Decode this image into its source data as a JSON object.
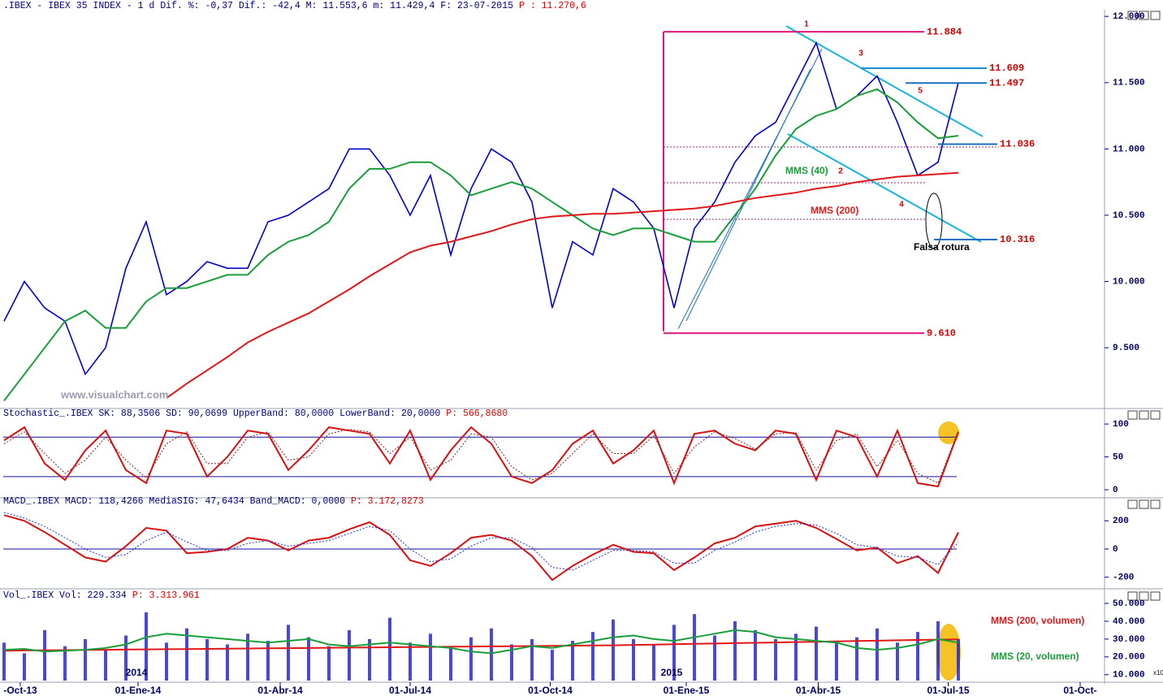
{
  "chart_data": [
    {
      "type": "line",
      "title": ".IBEX - IBEX 35 INDEX -  1 d Dif. %: -0,37 Dif.: -42,4 M: 11.553,6 m: 11.429,4 F: 23-07-2015",
      "title_p": "P : 11.270,6",
      "categories": [
        null,
        null,
        null,
        null,
        null,
        null,
        null,
        null,
        null,
        null,
        null,
        null,
        null,
        null,
        null,
        null,
        null,
        null,
        null,
        null,
        null,
        null,
        null,
        null,
        null,
        null,
        null,
        null,
        null,
        null,
        null,
        null,
        null,
        null,
        null,
        null,
        null,
        null,
        null,
        null,
        null,
        null,
        null,
        null,
        null,
        null,
        null,
        null
      ],
      "xlim": [
        -0.2,
        54.2
      ],
      "xticks": [
        {
          "value": 0.8,
          "label": "-Oct-13"
        },
        {
          "value": 6.6,
          "label": "01-Ene-14"
        },
        {
          "value": 13.6,
          "label": "01-Abr-14"
        },
        {
          "value": 20,
          "label": "01-Jul-14"
        },
        {
          "value": 26.9,
          "label": "01-Oct-14"
        },
        {
          "value": 33.6,
          "label": "01-Ene-15"
        },
        {
          "value": 40.1,
          "label": "01-Abr-15"
        },
        {
          "value": 46.5,
          "label": "01-Jul-15"
        },
        {
          "value": 53,
          "label": "01-Oct-"
        }
      ],
      "ylim": [
        9060,
        12050
      ],
      "yticks": [
        {
          "value": 12000,
          "label": "12.000"
        },
        {
          "value": 11500,
          "label": "11.500"
        },
        {
          "value": 11000,
          "label": "11.000"
        },
        {
          "value": 10500,
          "label": "10.500"
        },
        {
          "value": 10000,
          "label": "10.000"
        },
        {
          "value": 9500,
          "label": "9.500"
        }
      ],
      "series": [
        {
          "color": "#0000d0",
          "values": [
            9700,
            10000,
            9800,
            9700,
            9300,
            9500,
            10100,
            10450,
            9900,
            10000,
            10150,
            10100,
            10100,
            10450,
            10500,
            10600,
            10700,
            11000,
            11000,
            10800,
            10500,
            10800,
            10200,
            10700,
            11000,
            10900,
            10600,
            9800,
            10300,
            10200,
            10700,
            10600,
            10400,
            9800,
            10400,
            10600,
            10900,
            11100,
            11200,
            11500,
            11800,
            11300,
            11400,
            11550,
            11200,
            10800,
            10900,
            11500
          ]
        },
        {
          "name": "MMS (40)",
          "color": "#1a9e3a",
          "values": [
            9100,
            9300,
            9500,
            9700,
            9780,
            9650,
            9650,
            9850,
            9950,
            9950,
            10000,
            10050,
            10050,
            10200,
            10300,
            10350,
            10450,
            10700,
            10850,
            10850,
            10900,
            10900,
            10800,
            10650,
            10700,
            10750,
            10700,
            10600,
            10500,
            10400,
            10350,
            10400,
            10400,
            10350,
            10300,
            10300,
            10500,
            10700,
            10950,
            11150,
            11250,
            11300,
            11400,
            11450,
            11350,
            11200,
            11080,
            11100
          ]
        },
        {
          "name": "MMS (200)",
          "color": "#e01818",
          "values": [
            null,
            null,
            null,
            null,
            null,
            null,
            null,
            null,
            9120,
            9230,
            9330,
            9430,
            9540,
            9620,
            9690,
            9760,
            9850,
            9940,
            10040,
            10130,
            10220,
            10270,
            10300,
            10340,
            10380,
            10430,
            10470,
            10490,
            10500,
            10510,
            10510,
            10520,
            10530,
            10540,
            10550,
            10570,
            10600,
            10630,
            10650,
            10670,
            10700,
            10720,
            10750,
            10770,
            10790,
            10800,
            10810,
            10820
          ]
        }
      ],
      "levels": [
        {
          "value": 11884,
          "label": "11.884",
          "color": "#e0147a"
        },
        {
          "value": 11609,
          "label": "11.609",
          "color": "#1a8ed0"
        },
        {
          "value": 11497,
          "label": "11.497",
          "color": "#1a6fc0"
        },
        {
          "value": 11036,
          "label": "11.036",
          "color": "#1a6fc0"
        },
        {
          "value": 10316,
          "label": "10.316",
          "color": "#1a6fc0"
        },
        {
          "value": 9610,
          "label": "9.610",
          "color": "#e0147a"
        }
      ],
      "wave_labels": [
        "1",
        "2",
        "3",
        "4",
        "5"
      ],
      "annotations": [
        "Falsa rotura",
        "www.visualchart.com"
      ]
    },
    {
      "type": "line",
      "title": "Stochastic_.IBEX SK: 88,3506 SD: 90,0699 UpperBand: 80,0000 LowerBand: 20,0000",
      "title_p": "P: 566,8680",
      "ylim": [
        -8.6,
        110
      ],
      "yticks": [
        100,
        50,
        0
      ],
      "bands": [
        80,
        20
      ],
      "series": [
        {
          "color": "#d81010",
          "values": [
            75,
            95,
            40,
            15,
            60,
            90,
            30,
            10,
            90,
            85,
            20,
            50,
            90,
            85,
            30,
            60,
            95,
            90,
            85,
            40,
            90,
            15,
            60,
            95,
            70,
            20,
            10,
            30,
            70,
            90,
            40,
            60,
            90,
            10,
            85,
            90,
            70,
            60,
            90,
            85,
            15,
            90,
            80,
            20,
            90,
            10,
            5,
            88
          ]
        },
        {
          "color": "#802020",
          "values": [
            70,
            88,
            55,
            25,
            45,
            80,
            45,
            18,
            70,
            88,
            40,
            40,
            80,
            88,
            45,
            50,
            85,
            92,
            88,
            55,
            80,
            30,
            45,
            85,
            80,
            35,
            15,
            25,
            55,
            85,
            55,
            55,
            82,
            25,
            65,
            88,
            78,
            62,
            85,
            87,
            30,
            75,
            85,
            35,
            75,
            25,
            10,
            90
          ]
        }
      ]
    },
    {
      "type": "line",
      "title": "MACD_.IBEX MACD: 118,4266 MediaSIG: 47,6434 Band_MACD: 0,0000",
      "title_p": "P: 3.172,8273",
      "ylim": [
        -265,
        288
      ],
      "yticks": [
        200,
        0,
        -200
      ],
      "bands": [
        0
      ],
      "series": [
        {
          "color": "#d81010",
          "values": [
            240,
            200,
            120,
            30,
            -60,
            -90,
            20,
            150,
            130,
            -30,
            -20,
            0,
            80,
            60,
            -10,
            60,
            80,
            140,
            190,
            100,
            -80,
            -120,
            -30,
            80,
            100,
            60,
            -50,
            -220,
            -120,
            -40,
            30,
            -20,
            -30,
            -150,
            -60,
            40,
            80,
            160,
            180,
            200,
            150,
            70,
            -10,
            10,
            -100,
            -50,
            -170,
            118
          ]
        },
        {
          "color": "#2030d0",
          "values": [
            260,
            220,
            160,
            80,
            0,
            -60,
            -40,
            60,
            120,
            50,
            -10,
            -10,
            40,
            60,
            20,
            40,
            60,
            110,
            160,
            130,
            0,
            -90,
            -70,
            20,
            80,
            80,
            10,
            -130,
            -150,
            -80,
            -10,
            -10,
            -20,
            -100,
            -100,
            -10,
            50,
            120,
            160,
            180,
            170,
            110,
            30,
            10,
            -50,
            -60,
            -110,
            48
          ]
        }
      ]
    },
    {
      "type": "bar",
      "title": "Vol_.IBEX Vol: 229.334",
      "title_p": "P: 3.313.961",
      "unit_note": "x10",
      "ylim": [
        6700,
        52300
      ],
      "yticks": [
        {
          "value": 50000,
          "label": "50.000"
        },
        {
          "value": 40000,
          "label": "40.000"
        },
        {
          "value": 30000,
          "label": "30.000"
        },
        {
          "value": 20000,
          "label": "20.000"
        },
        {
          "value": 10000,
          "label": "10.000"
        }
      ],
      "color": "#1c1cc8",
      "values": [
        28000,
        22000,
        35000,
        26000,
        30000,
        24000,
        32000,
        45000,
        28000,
        36000,
        30000,
        27000,
        33000,
        29000,
        38000,
        31000,
        26000,
        35000,
        30000,
        42000,
        28000,
        33000,
        25000,
        31000,
        36000,
        27000,
        30000,
        24000,
        29000,
        34000,
        41000,
        30000,
        27000,
        38000,
        44000,
        32000,
        40000,
        35000,
        30000,
        33000,
        37000,
        29000,
        31000,
        36000,
        28000,
        34000,
        40000,
        30000
      ],
      "series": [
        {
          "name": "MMS (200, volumen)",
          "color": "#e01818",
          "values": [
            23500,
            23600,
            23700,
            23800,
            23900,
            24000,
            24100,
            24200,
            24300,
            24400,
            24500,
            24600,
            24700,
            24800,
            24900,
            25000,
            25100,
            25200,
            25300,
            25400,
            25500,
            25600,
            25700,
            25800,
            25900,
            26000,
            26100,
            26200,
            26300,
            26400,
            26500,
            26700,
            26900,
            27100,
            27300,
            27500,
            27700,
            27900,
            28100,
            28300,
            28500,
            28700,
            28900,
            29100,
            29300,
            29500,
            29700,
            29800
          ]
        },
        {
          "name": "MMS (20, volumen)",
          "color": "#1a9e3a",
          "values": [
            24000,
            24500,
            23000,
            23500,
            24000,
            25000,
            27000,
            31000,
            33000,
            32000,
            31000,
            30000,
            29000,
            28000,
            29000,
            30000,
            27000,
            26000,
            27000,
            28000,
            27000,
            26000,
            25000,
            23000,
            22000,
            24000,
            26000,
            25000,
            27000,
            29000,
            31000,
            32000,
            30000,
            29000,
            31000,
            33000,
            35000,
            34000,
            31000,
            30000,
            29000,
            28000,
            25000,
            24000,
            25000,
            27000,
            30000,
            28000
          ]
        }
      ],
      "annotations": [
        "2014",
        "2015"
      ]
    }
  ]
}
